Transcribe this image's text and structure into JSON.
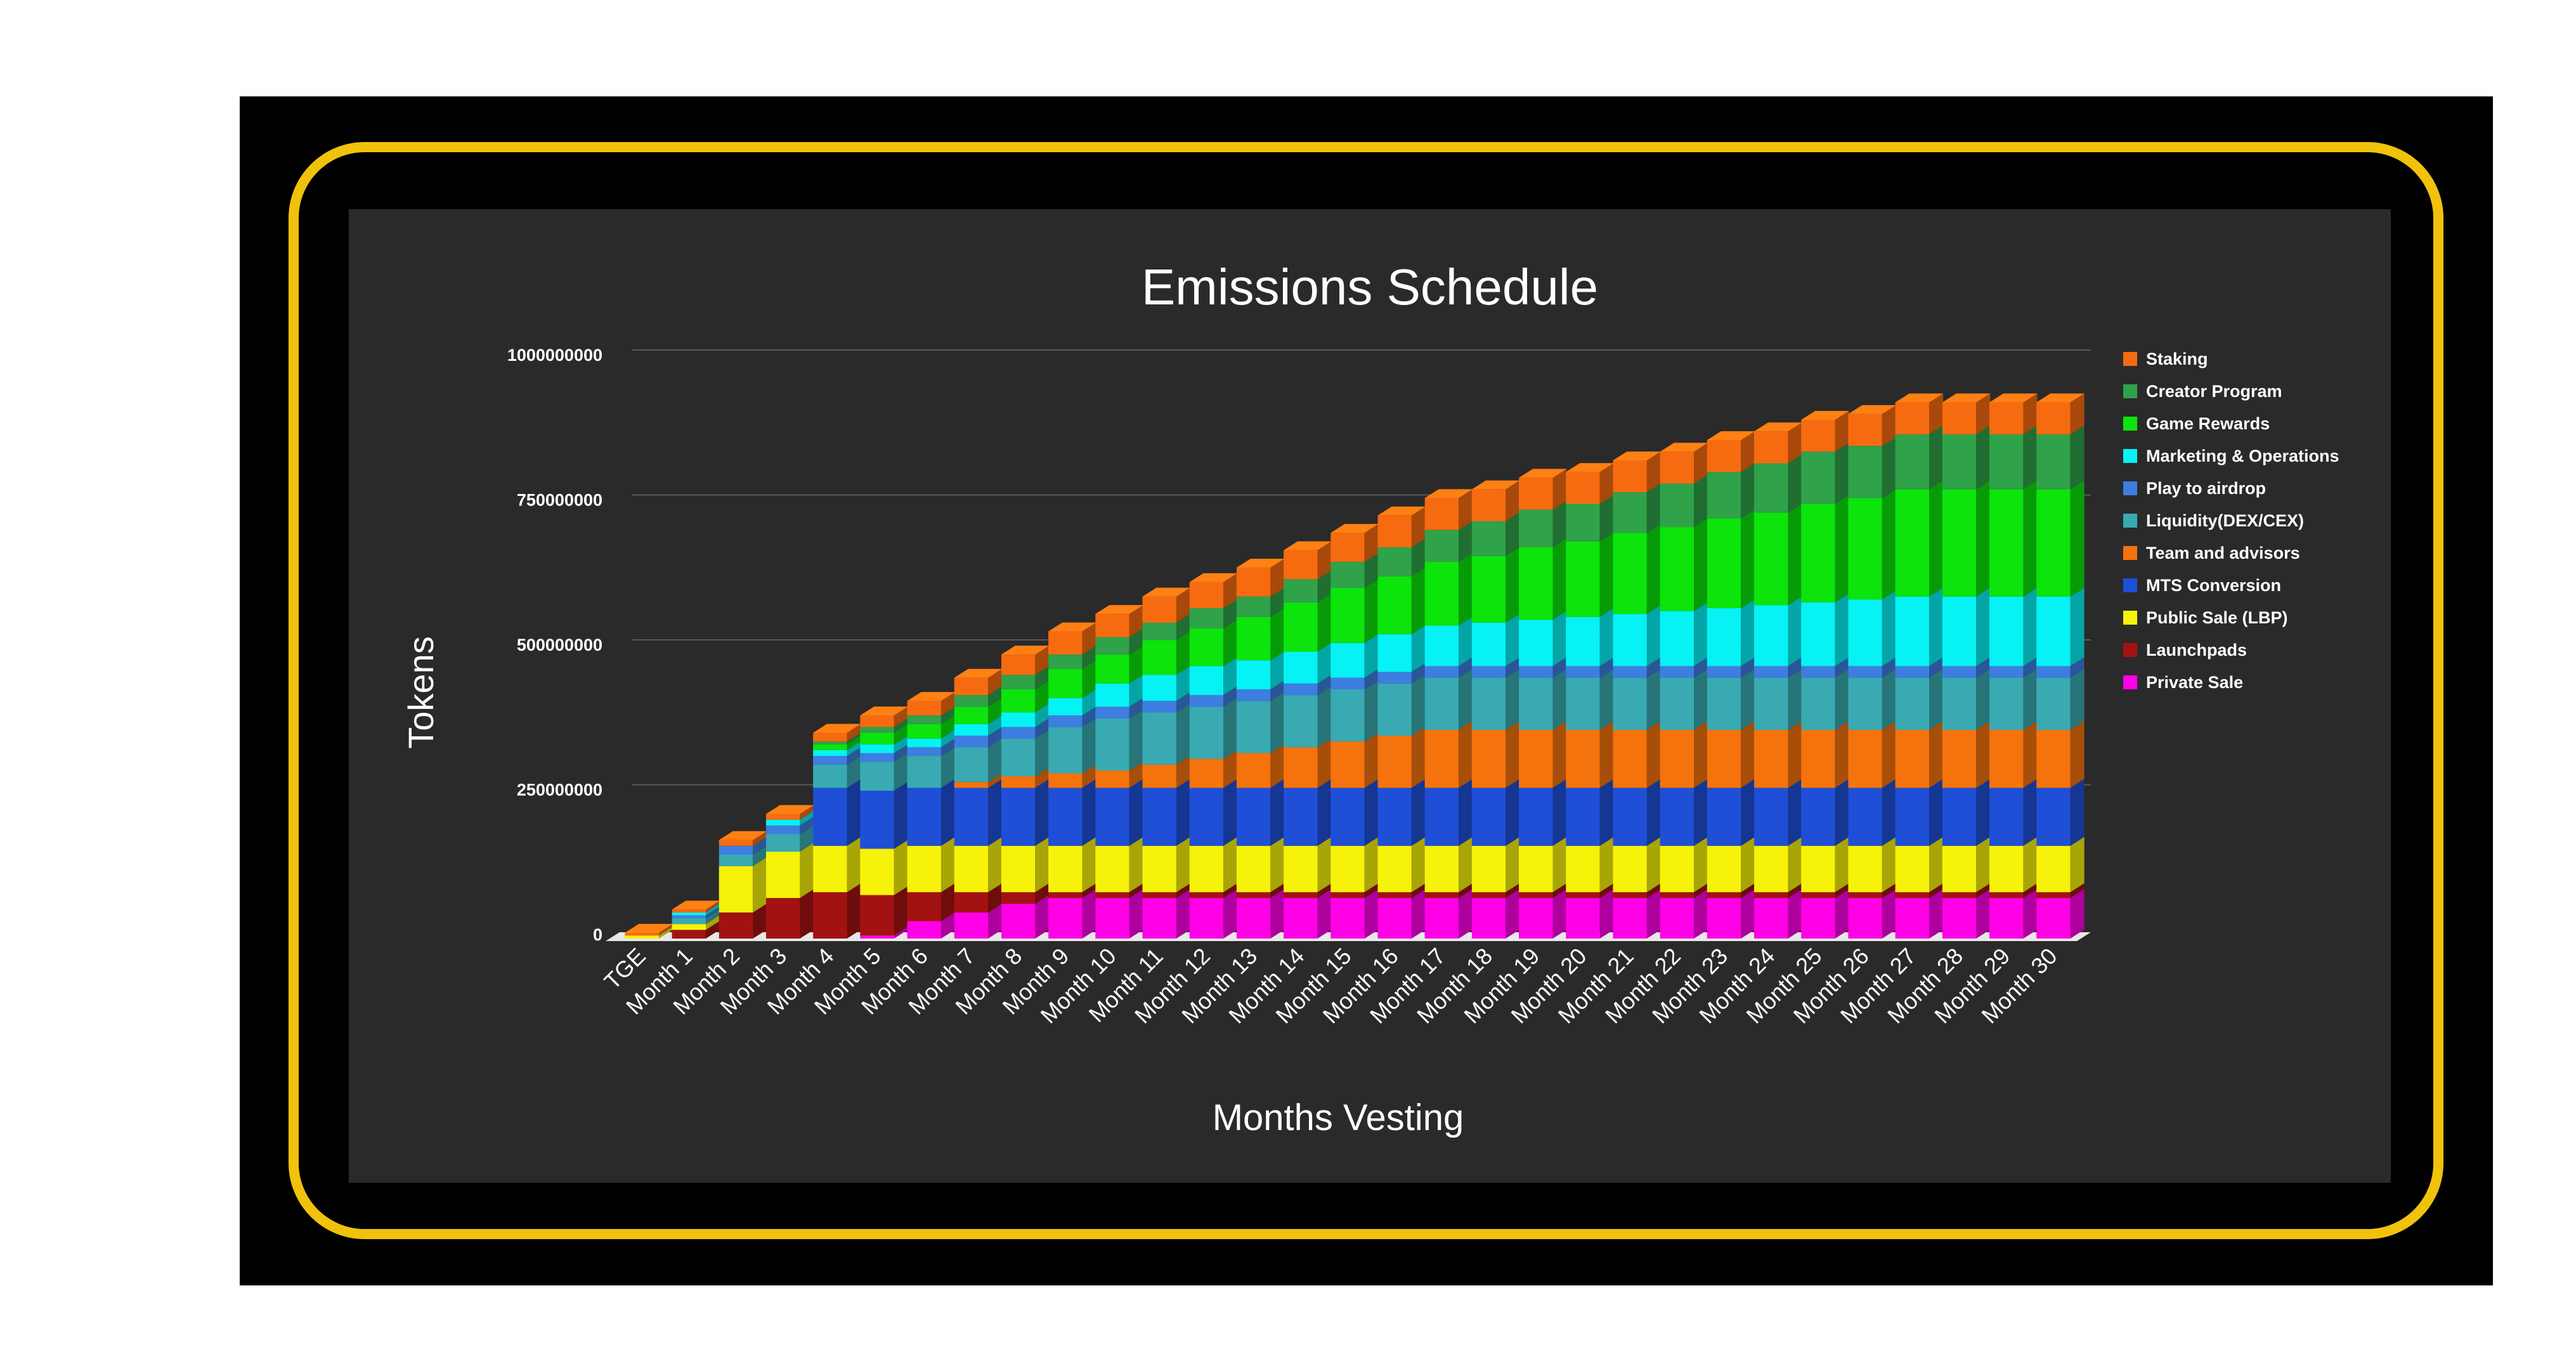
{
  "chart_data": {
    "type": "bar",
    "stacked": true,
    "three_d": true,
    "title": "Emissions Schedule",
    "xlabel": "Months Vesting",
    "ylabel": "Tokens",
    "ylim": [
      0,
      1000000000
    ],
    "yticks": [
      0,
      250000000,
      500000000,
      750000000,
      1000000000
    ],
    "ytick_labels": [
      "0",
      "250000000",
      "500000000",
      "750000000",
      "1000000000"
    ],
    "grid": true,
    "legend_position": "right",
    "categories": [
      "TGE",
      "Month 1",
      "Month 2",
      "Month 3",
      "Month 4",
      "Month 5",
      "Month 6",
      "Month 7",
      "Month 8",
      "Month 9",
      "Month 10",
      "Month 11",
      "Month 12",
      "Month 13",
      "Month 14",
      "Month 15",
      "Month 16",
      "Month 17",
      "Month 18",
      "Month 19",
      "Month 20",
      "Month 21",
      "Month 22",
      "Month 23",
      "Month 24",
      "Month 25",
      "Month 26",
      "Month 27",
      "Month 28",
      "Month 29",
      "Month 30"
    ],
    "series": [
      {
        "name": "Private Sale",
        "color": "#ff00e6",
        "values": [
          0,
          0,
          0,
          0,
          0,
          5000000,
          30000000,
          45000000,
          60000000,
          70000000,
          70000000,
          70000000,
          70000000,
          70000000,
          70000000,
          70000000,
          70000000,
          70000000,
          70000000,
          70000000,
          70000000,
          70000000,
          70000000,
          70000000,
          70000000,
          70000000,
          70000000,
          70000000,
          70000000,
          70000000,
          70000000
        ]
      },
      {
        "name": "Launchpads",
        "color": "#a31212",
        "values": [
          0,
          15000000,
          45000000,
          70000000,
          80000000,
          70000000,
          50000000,
          35000000,
          20000000,
          10000000,
          10000000,
          10000000,
          10000000,
          10000000,
          10000000,
          10000000,
          10000000,
          10000000,
          10000000,
          10000000,
          10000000,
          10000000,
          10000000,
          10000000,
          10000000,
          10000000,
          10000000,
          10000000,
          10000000,
          10000000,
          10000000
        ]
      },
      {
        "name": "Public Sale (LBP)",
        "color": "#f7f20a",
        "values": [
          5000000,
          10000000,
          80000000,
          80000000,
          80000000,
          80000000,
          80000000,
          80000000,
          80000000,
          80000000,
          80000000,
          80000000,
          80000000,
          80000000,
          80000000,
          80000000,
          80000000,
          80000000,
          80000000,
          80000000,
          80000000,
          80000000,
          80000000,
          80000000,
          80000000,
          80000000,
          80000000,
          80000000,
          80000000,
          80000000,
          80000000
        ]
      },
      {
        "name": "MTS Conversion",
        "color": "#1f4fd6",
        "values": [
          0,
          0,
          0,
          0,
          100000000,
          100000000,
          100000000,
          100000000,
          100000000,
          100000000,
          100000000,
          100000000,
          100000000,
          100000000,
          100000000,
          100000000,
          100000000,
          100000000,
          100000000,
          100000000,
          100000000,
          100000000,
          100000000,
          100000000,
          100000000,
          100000000,
          100000000,
          100000000,
          100000000,
          100000000,
          100000000
        ]
      },
      {
        "name": "Team and advisors",
        "color": "#f5730d",
        "values": [
          0,
          0,
          0,
          0,
          0,
          0,
          0,
          10000000,
          20000000,
          25000000,
          30000000,
          40000000,
          50000000,
          60000000,
          70000000,
          80000000,
          90000000,
          100000000,
          100000000,
          100000000,
          100000000,
          100000000,
          100000000,
          100000000,
          100000000,
          100000000,
          100000000,
          100000000,
          100000000,
          100000000,
          100000000
        ]
      },
      {
        "name": "Liquidity(DEX/CEX)",
        "color": "#39aab2",
        "values": [
          0,
          10000000,
          20000000,
          30000000,
          40000000,
          50000000,
          55000000,
          60000000,
          65000000,
          80000000,
          90000000,
          90000000,
          90000000,
          90000000,
          90000000,
          90000000,
          90000000,
          90000000,
          90000000,
          90000000,
          90000000,
          90000000,
          90000000,
          90000000,
          90000000,
          90000000,
          90000000,
          90000000,
          90000000,
          90000000,
          90000000
        ]
      },
      {
        "name": "Play to airdrop",
        "color": "#3d7ee0",
        "values": [
          0,
          5000000,
          15000000,
          15000000,
          15000000,
          15000000,
          15000000,
          20000000,
          20000000,
          20000000,
          20000000,
          20000000,
          20000000,
          20000000,
          20000000,
          20000000,
          20000000,
          20000000,
          20000000,
          20000000,
          20000000,
          20000000,
          20000000,
          20000000,
          20000000,
          20000000,
          20000000,
          20000000,
          20000000,
          20000000,
          20000000
        ]
      },
      {
        "name": "Marketing & Operations",
        "color": "#06f2f5",
        "values": [
          0,
          5000000,
          0,
          10000000,
          10000000,
          15000000,
          15000000,
          20000000,
          25000000,
          30000000,
          40000000,
          45000000,
          50000000,
          50000000,
          55000000,
          60000000,
          65000000,
          70000000,
          75000000,
          80000000,
          85000000,
          90000000,
          95000000,
          100000000,
          105000000,
          110000000,
          115000000,
          120000000,
          120000000,
          120000000,
          120000000
        ]
      },
      {
        "name": "Game Rewards",
        "color": "#0ce40c",
        "values": [
          0,
          0,
          0,
          0,
          10000000,
          20000000,
          25000000,
          30000000,
          40000000,
          50000000,
          50000000,
          60000000,
          65000000,
          75000000,
          85000000,
          95000000,
          100000000,
          110000000,
          115000000,
          125000000,
          130000000,
          140000000,
          145000000,
          155000000,
          160000000,
          170000000,
          175000000,
          185000000,
          185000000,
          185000000,
          185000000
        ]
      },
      {
        "name": "Creator Program",
        "color": "#2fa24a",
        "values": [
          0,
          0,
          0,
          0,
          5000000,
          10000000,
          15000000,
          20000000,
          25000000,
          25000000,
          30000000,
          30000000,
          35000000,
          35000000,
          40000000,
          45000000,
          50000000,
          55000000,
          60000000,
          65000000,
          65000000,
          70000000,
          75000000,
          80000000,
          85000000,
          90000000,
          90000000,
          95000000,
          95000000,
          95000000,
          95000000
        ]
      },
      {
        "name": "Staking",
        "color": "#f76b10",
        "values": [
          5000000,
          5000000,
          10000000,
          10000000,
          15000000,
          20000000,
          25000000,
          30000000,
          35000000,
          40000000,
          40000000,
          45000000,
          45000000,
          50000000,
          50000000,
          50000000,
          55000000,
          55000000,
          55000000,
          55000000,
          55000000,
          55000000,
          55000000,
          55000000,
          55000000,
          55000000,
          55000000,
          55000000,
          55000000,
          55000000,
          55000000
        ]
      }
    ]
  },
  "colors": {
    "frame_background": "#000000",
    "card_border": "#f0c20c",
    "plot_background": "#2a2a2a",
    "gridline": "#5a5a5a",
    "text": "#ffffff"
  }
}
